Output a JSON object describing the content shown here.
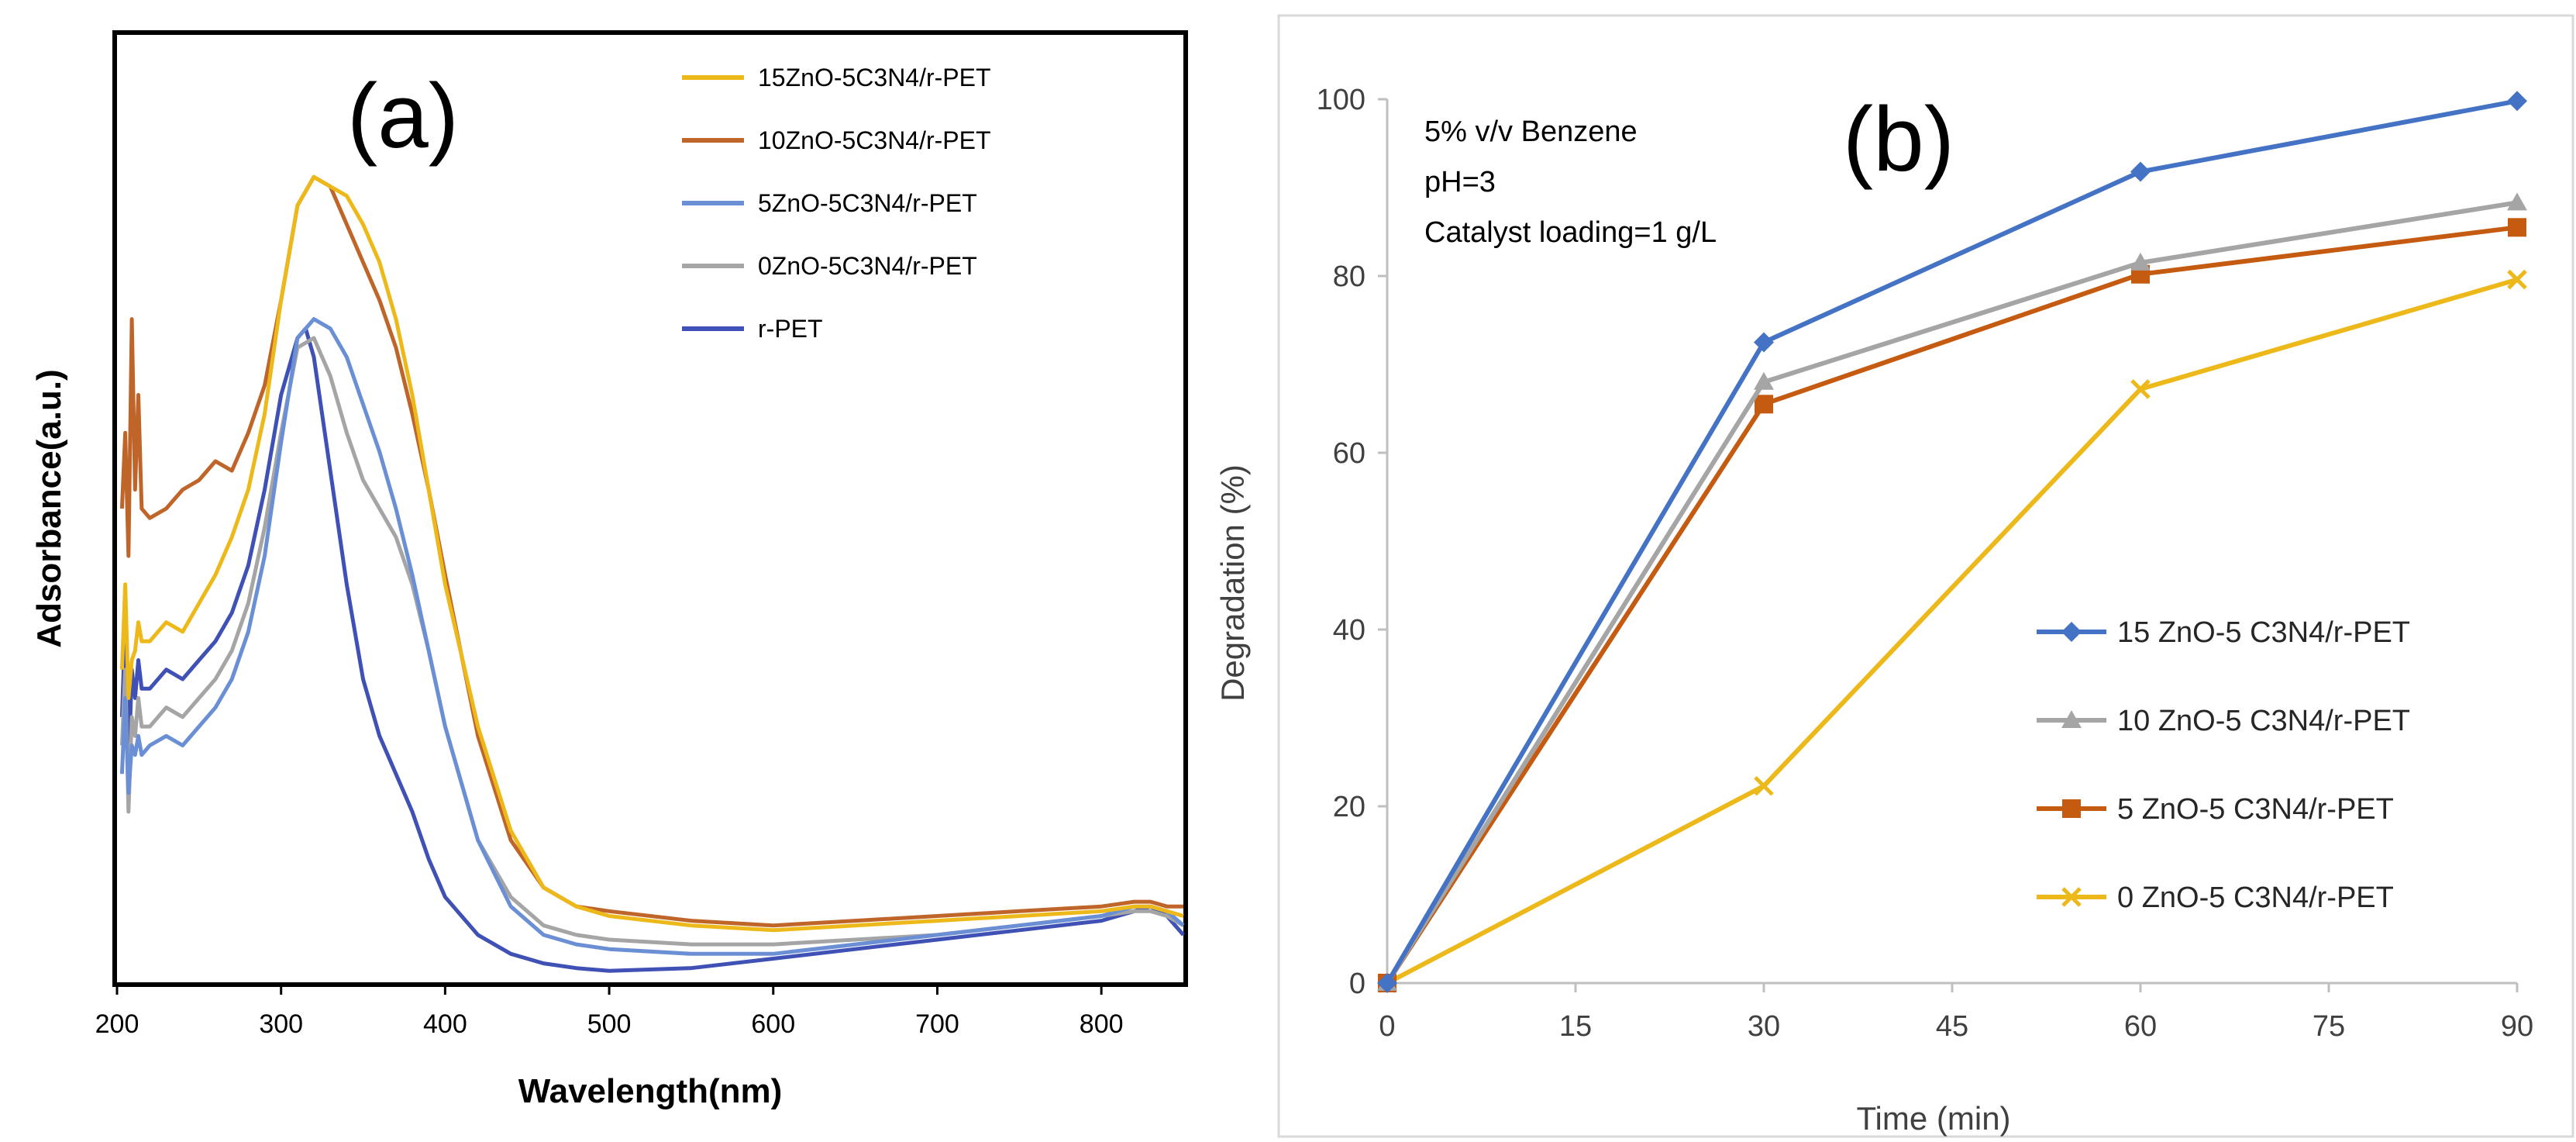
{
  "colors": {
    "blue": "#4472C4",
    "orange": "#C55A11",
    "gray": "#A5A5A5",
    "yellow": "#EDB91A",
    "navy": "#3F51B5",
    "lightblue": "#6B8FD4",
    "darkorange": "#C0652A"
  },
  "chart_data": [
    {
      "type": "line",
      "panel_label": "(a)",
      "xlabel": "Wavelength(nm)",
      "ylabel": "Adsorbance(a.u.)",
      "xlim": [
        200,
        850
      ],
      "ylim": [
        0,
        1.0
      ],
      "x_ticks": [
        200,
        300,
        400,
        500,
        600,
        700,
        800
      ],
      "x_tick_labels": [
        "200",
        "300",
        "400",
        "500",
        "600",
        "700",
        "800"
      ],
      "legend_position": "top-right",
      "series": [
        {
          "name": "15ZnO-5C3N4/r-PET",
          "color": "#EDB91A",
          "x": [
            203,
            205,
            207,
            209,
            211,
            213,
            215,
            220,
            230,
            240,
            250,
            260,
            270,
            280,
            290,
            300,
            310,
            320,
            330,
            340,
            350,
            360,
            370,
            380,
            390,
            400,
            420,
            440,
            460,
            480,
            500,
            550,
            600,
            650,
            700,
            750,
            800,
            820,
            830,
            840,
            850
          ],
          "y": [
            0.33,
            0.42,
            0.3,
            0.34,
            0.35,
            0.38,
            0.36,
            0.36,
            0.38,
            0.37,
            0.4,
            0.43,
            0.47,
            0.52,
            0.6,
            0.72,
            0.82,
            0.85,
            0.84,
            0.83,
            0.8,
            0.76,
            0.7,
            0.62,
            0.52,
            0.42,
            0.27,
            0.16,
            0.1,
            0.08,
            0.07,
            0.06,
            0.055,
            0.06,
            0.065,
            0.07,
            0.075,
            0.08,
            0.08,
            0.075,
            0.07
          ]
        },
        {
          "name": "10ZnO-5C3N4/r-PET",
          "color": "#C0652A",
          "x": [
            203,
            205,
            207,
            209,
            211,
            213,
            215,
            220,
            230,
            240,
            250,
            260,
            270,
            280,
            290,
            300,
            310,
            320,
            330,
            340,
            350,
            360,
            370,
            380,
            390,
            400,
            420,
            440,
            460,
            480,
            500,
            550,
            600,
            650,
            700,
            750,
            800,
            820,
            830,
            840,
            850
          ],
          "y": [
            0.5,
            0.58,
            0.45,
            0.7,
            0.52,
            0.62,
            0.5,
            0.49,
            0.5,
            0.52,
            0.53,
            0.55,
            0.54,
            0.58,
            0.63,
            0.72,
            0.82,
            0.85,
            0.84,
            0.8,
            0.76,
            0.72,
            0.67,
            0.6,
            0.52,
            0.43,
            0.26,
            0.15,
            0.1,
            0.08,
            0.075,
            0.065,
            0.06,
            0.065,
            0.07,
            0.075,
            0.08,
            0.085,
            0.085,
            0.08,
            0.08
          ]
        },
        {
          "name": "5ZnO-5C3N4/r-PET",
          "color": "#6B8FD4",
          "x": [
            203,
            205,
            207,
            209,
            211,
            213,
            215,
            220,
            230,
            240,
            250,
            260,
            270,
            280,
            290,
            300,
            310,
            320,
            330,
            340,
            350,
            360,
            370,
            380,
            390,
            400,
            420,
            440,
            460,
            480,
            500,
            550,
            600,
            650,
            700,
            750,
            800,
            820,
            830,
            840,
            850
          ],
          "y": [
            0.22,
            0.3,
            0.2,
            0.25,
            0.24,
            0.26,
            0.24,
            0.25,
            0.26,
            0.25,
            0.27,
            0.29,
            0.32,
            0.37,
            0.45,
            0.57,
            0.68,
            0.7,
            0.69,
            0.66,
            0.61,
            0.56,
            0.5,
            0.43,
            0.35,
            0.27,
            0.15,
            0.08,
            0.05,
            0.04,
            0.035,
            0.03,
            0.03,
            0.04,
            0.05,
            0.06,
            0.07,
            0.08,
            0.08,
            0.075,
            0.06
          ]
        },
        {
          "name": "0ZnO-5C3N4/r-PET",
          "color": "#A5A5A5",
          "x": [
            203,
            205,
            207,
            209,
            211,
            213,
            215,
            220,
            230,
            240,
            250,
            260,
            270,
            280,
            290,
            300,
            310,
            320,
            330,
            340,
            350,
            360,
            370,
            380,
            390,
            400,
            420,
            440,
            460,
            480,
            500,
            550,
            600,
            650,
            700,
            750,
            800,
            820,
            830,
            840,
            850
          ],
          "y": [
            0.25,
            0.33,
            0.18,
            0.28,
            0.26,
            0.3,
            0.27,
            0.27,
            0.29,
            0.28,
            0.3,
            0.32,
            0.35,
            0.4,
            0.48,
            0.58,
            0.67,
            0.68,
            0.64,
            0.58,
            0.53,
            0.5,
            0.47,
            0.42,
            0.35,
            0.27,
            0.15,
            0.09,
            0.06,
            0.05,
            0.045,
            0.04,
            0.04,
            0.045,
            0.05,
            0.06,
            0.07,
            0.075,
            0.075,
            0.07,
            0.06
          ]
        },
        {
          "name": "r-PET",
          "color": "#3F51B5",
          "x": [
            203,
            205,
            207,
            209,
            211,
            213,
            215,
            220,
            230,
            240,
            250,
            260,
            270,
            280,
            290,
            300,
            310,
            315,
            320,
            330,
            340,
            350,
            360,
            370,
            380,
            390,
            400,
            420,
            440,
            460,
            480,
            500,
            550,
            600,
            650,
            700,
            750,
            800,
            820,
            830,
            840,
            850
          ],
          "y": [
            0.28,
            0.38,
            0.22,
            0.33,
            0.3,
            0.34,
            0.31,
            0.31,
            0.33,
            0.32,
            0.34,
            0.36,
            0.39,
            0.44,
            0.52,
            0.62,
            0.68,
            0.69,
            0.66,
            0.54,
            0.42,
            0.32,
            0.26,
            0.22,
            0.18,
            0.13,
            0.09,
            0.05,
            0.03,
            0.02,
            0.015,
            0.012,
            0.015,
            0.025,
            0.035,
            0.045,
            0.055,
            0.065,
            0.075,
            0.08,
            0.07,
            0.05
          ]
        }
      ]
    },
    {
      "type": "line",
      "panel_label": "(b)",
      "xlabel": "Time (min)",
      "ylabel": "Degradation (%)",
      "xlim": [
        0,
        90
      ],
      "ylim": [
        0,
        100
      ],
      "x_ticks": [
        0,
        15,
        30,
        45,
        60,
        75,
        90
      ],
      "x_tick_labels": [
        "0",
        "15",
        "30",
        "45",
        "60",
        "75",
        "90"
      ],
      "y_ticks": [
        0,
        20,
        40,
        60,
        80,
        100
      ],
      "y_tick_labels": [
        "0",
        "20",
        "40",
        "60",
        "80",
        "100"
      ],
      "annotation": [
        "5% v/v Benzene",
        "pH=3",
        "Catalyst loading=1 g/L"
      ],
      "legend_position": "bottom-right",
      "series": [
        {
          "name": "15 ZnO-5 C3N4/r-PET",
          "color": "#4472C4",
          "marker": "diamond",
          "x": [
            0,
            30,
            60,
            90
          ],
          "y": [
            0,
            72.5,
            91.8,
            99.8
          ]
        },
        {
          "name": "10 ZnO-5 C3N4/r-PET",
          "color": "#A5A5A5",
          "marker": "triangle",
          "x": [
            0,
            30,
            60,
            90
          ],
          "y": [
            0,
            68,
            81.5,
            88.3
          ]
        },
        {
          "name": "5 ZnO-5 C3N4/r-PET",
          "color": "#C55A11",
          "marker": "square",
          "x": [
            0,
            30,
            60,
            90
          ],
          "y": [
            0,
            65.5,
            80.2,
            85.5
          ]
        },
        {
          "name": "0 ZnO-5 C3N4/r-PET",
          "color": "#EDB91A",
          "marker": "x",
          "x": [
            0,
            30,
            60,
            90
          ],
          "y": [
            0,
            22.3,
            67.2,
            79.6
          ]
        }
      ]
    }
  ]
}
